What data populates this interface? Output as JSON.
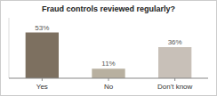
{
  "chart_data": {
    "type": "bar",
    "title": "Fraud controls reviewed regularly?",
    "categories": [
      "Yes",
      "No",
      "Don't know"
    ],
    "values": [
      53,
      11,
      36
    ],
    "value_labels": [
      "53%",
      "11%",
      "36%"
    ],
    "colors": [
      "#7d7060",
      "#b8b0a0",
      "#c8c0b8"
    ],
    "ylim": [
      0,
      70
    ],
    "data_labels": true,
    "tick_labels": "x",
    "grid": false
  }
}
